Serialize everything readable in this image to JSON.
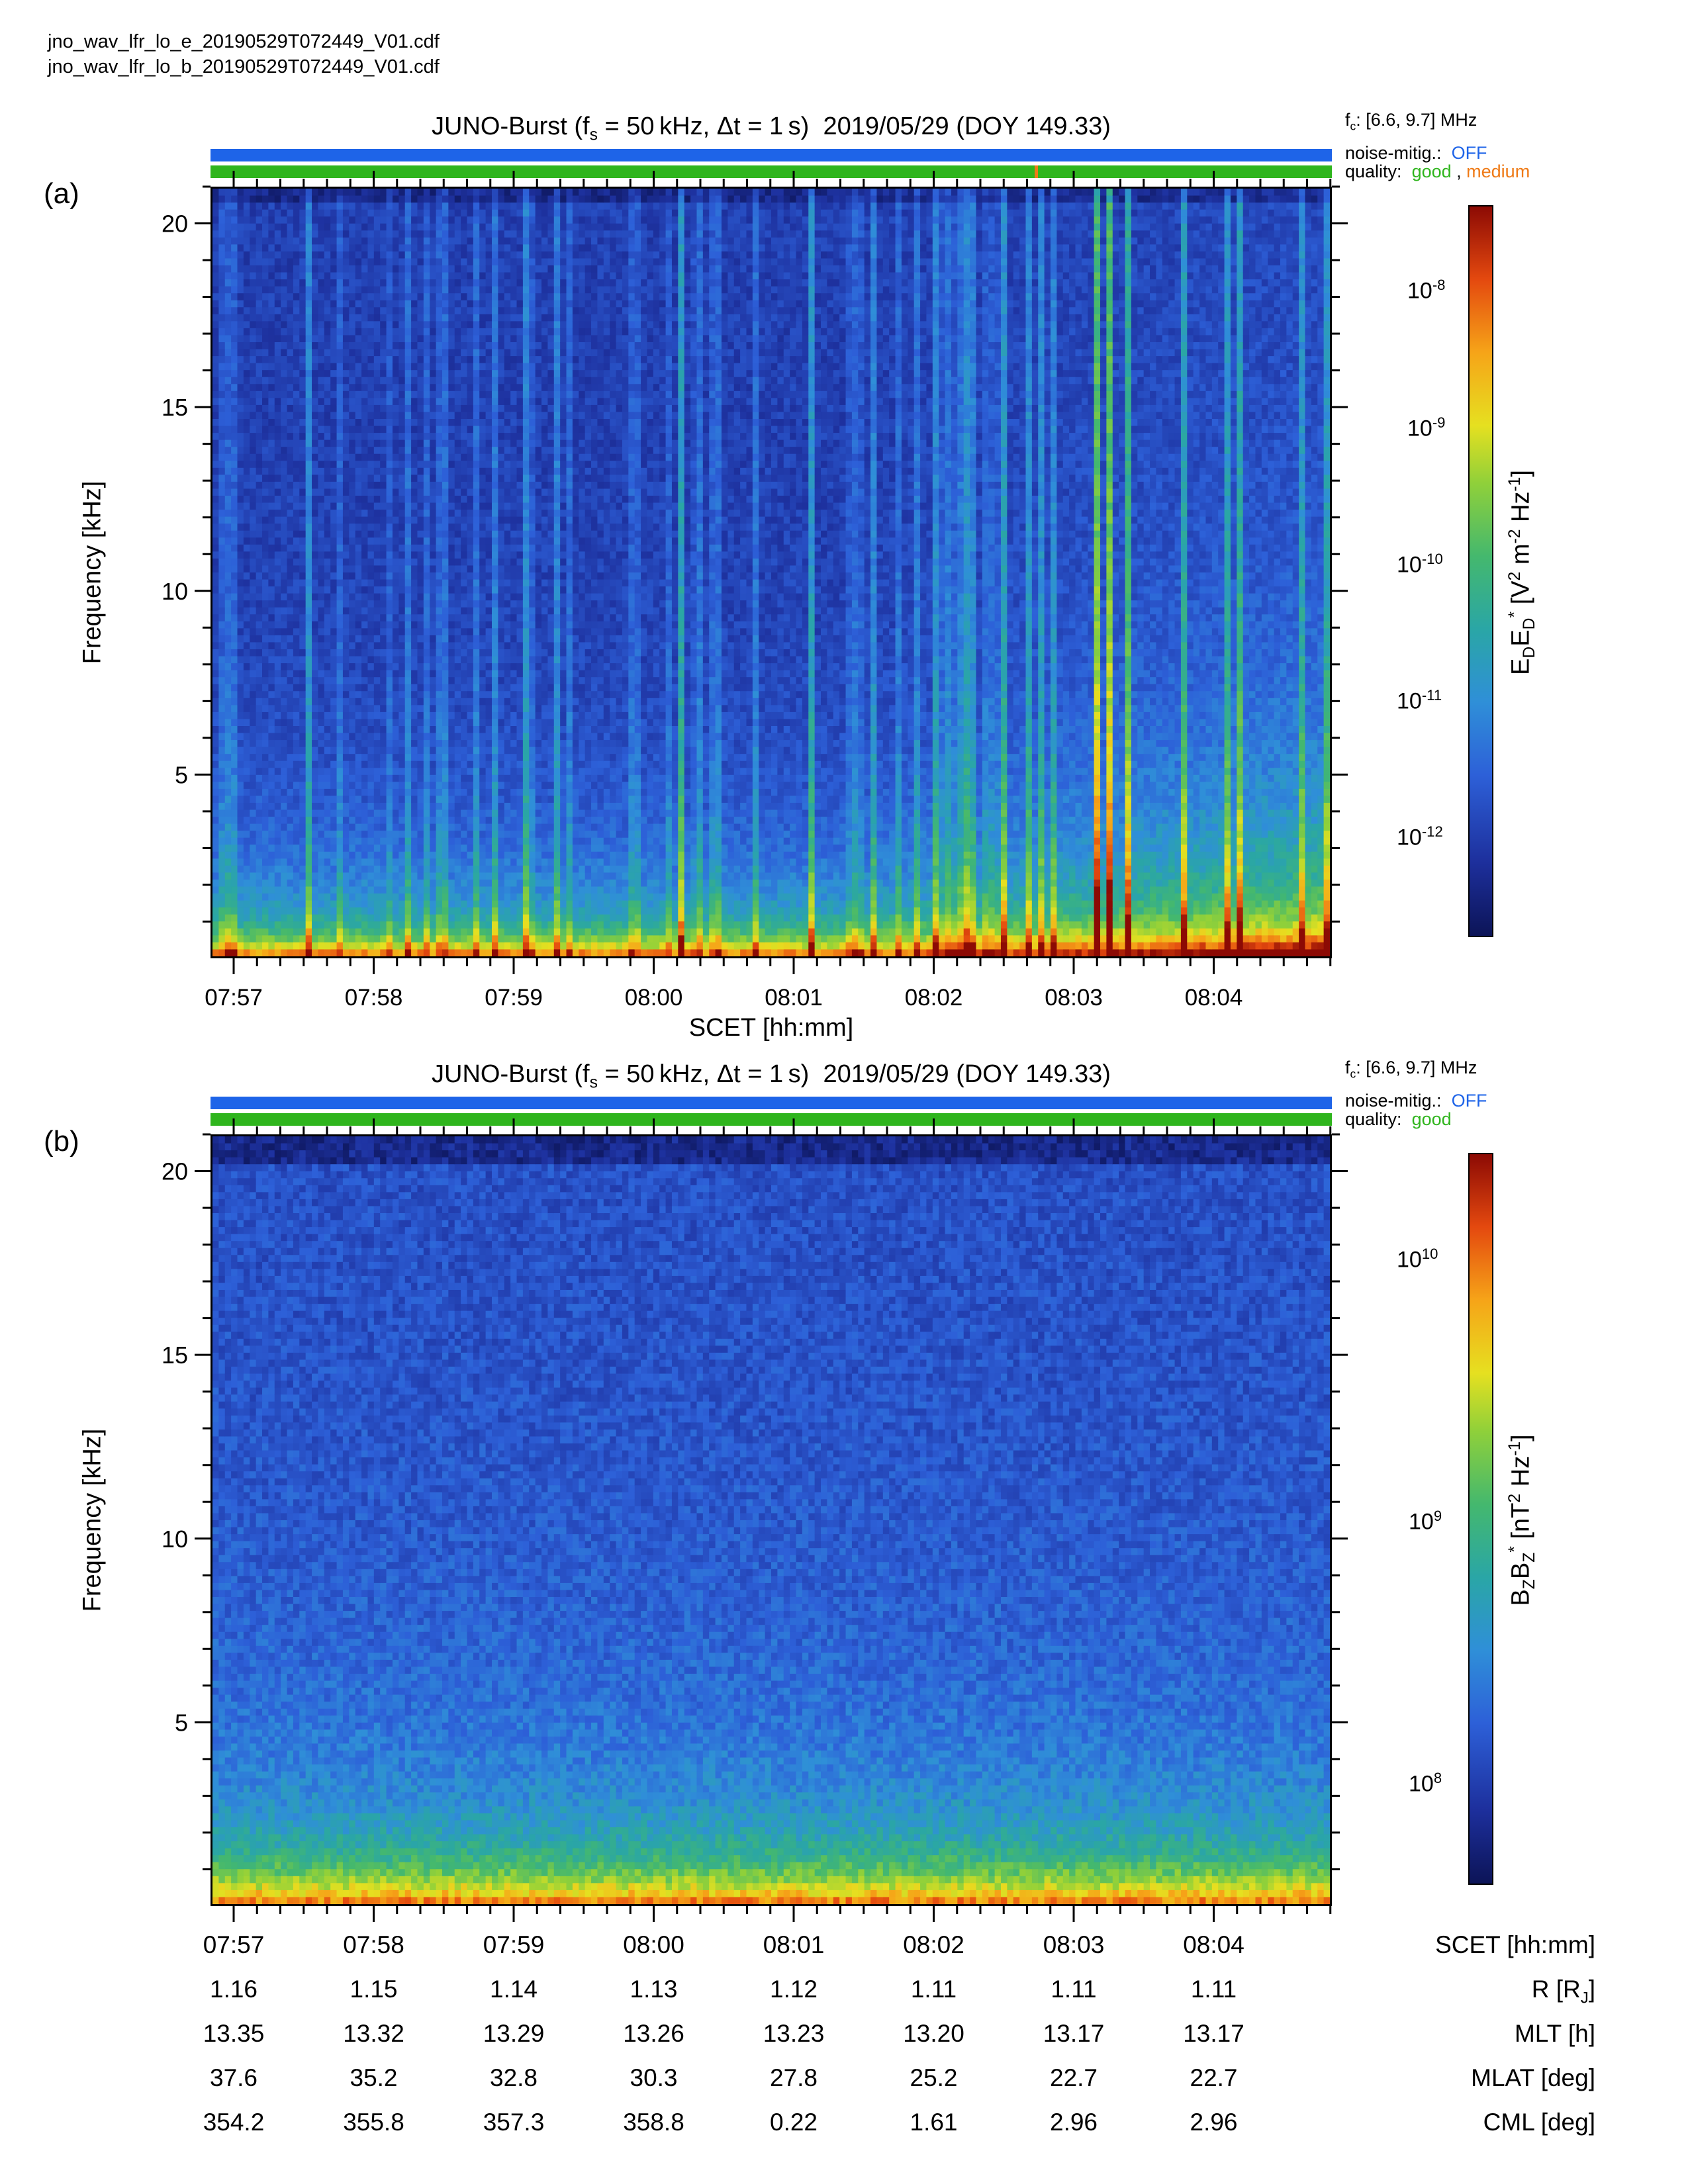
{
  "files": [
    "jno_wav_lfr_lo_e_20190529T072449_V01.cdf",
    "jno_wav_lfr_lo_b_20190529T072449_V01.cdf"
  ],
  "colors": {
    "noise_bar": "#1e64e8",
    "quality_good": "#2fb51d",
    "quality_medium": "#ef7a16",
    "noise_text": "#1e64e8"
  },
  "chart_data": [
    {
      "type": "heatmap",
      "panel_label": "(a)",
      "title": "JUNO-Burst (fs = 50 kHz, Δt = 1 s)  2019/05/29 (DOY 149.33)",
      "fc": "fc: [6.6, 9.7] MHz",
      "noise_mitig": "OFF",
      "quality": [
        "good",
        "medium"
      ],
      "xlabel": "SCET [hh:mm]",
      "ylabel": "Frequency [kHz]",
      "x_ticks": [
        "07:57",
        "07:58",
        "07:59",
        "08:00",
        "08:01",
        "08:02",
        "08:03",
        "08:04"
      ],
      "y_ticks": [
        5,
        10,
        15,
        20
      ],
      "ylim": [
        0,
        21
      ],
      "colorbar": {
        "label": "EDED* [V2 m-2 Hz-1]",
        "scale": "log",
        "ticks": [
          "10-12",
          "10-11",
          "10-10",
          "10-9",
          "10-8"
        ],
        "range": [
          1e-13,
          5e-08
        ]
      },
      "features": "intense emission below ~1 kHz, banded bursts up to ~6 kHz between 07:59 and 08:01, increasing broadband spiky emission after 08:02"
    },
    {
      "type": "heatmap",
      "panel_label": "(b)",
      "title": "JUNO-Burst (fs = 50 kHz, Δt = 1 s)  2019/05/29 (DOY 149.33)",
      "fc": "fc: [6.6, 9.7] MHz",
      "noise_mitig": "OFF",
      "quality": [
        "good"
      ],
      "xlabel": "SCET [hh:mm]",
      "ylabel": "Frequency [kHz]",
      "x_ticks": [
        "07:57",
        "07:58",
        "07:59",
        "08:00",
        "08:01",
        "08:02",
        "08:03",
        "08:04"
      ],
      "y_ticks": [
        5,
        10,
        15,
        20
      ],
      "ylim": [
        0,
        21
      ],
      "colorbar": {
        "label": "BZBZ* [nT2 Hz-1]",
        "scale": "log",
        "ticks": [
          "108",
          "109",
          "1010"
        ],
        "range": [
          60000000.0,
          40000000000.0
        ]
      },
      "features": "smooth broadband spectrum, intensity decreasing with frequency, strongest below ~1 kHz"
    }
  ],
  "ephemeris": {
    "SCET [hh:mm]": [
      "07:57",
      "07:58",
      "07:59",
      "08:00",
      "08:01",
      "08:02",
      "08:03",
      "08:04"
    ],
    "R [RJ]": [
      "1.16",
      "1.15",
      "1.14",
      "1.13",
      "1.12",
      "1.11",
      "1.11",
      "1.11"
    ],
    "MLT [h]": [
      "13.35",
      "13.32",
      "13.29",
      "13.26",
      "13.23",
      "13.20",
      "13.17",
      "13.17"
    ],
    "MLAT [deg]": [
      "37.6",
      "35.2",
      "32.8",
      "30.3",
      "27.8",
      "25.2",
      "22.7",
      "22.7"
    ],
    "CML [deg]": [
      "354.2",
      "355.8",
      "357.3",
      "358.8",
      "0.22",
      "1.61",
      "2.96",
      "2.96"
    ]
  },
  "text": {
    "title_a": "JUNO-Burst (",
    "noise_label": "noise-mitig.:",
    "quality_label": "quality:",
    "eph_scet": "SCET [hh:mm]",
    "eph_r": "R [R",
    "eph_mlt": "MLT [h]",
    "eph_mlat": "MLAT [deg]",
    "eph_cml": "CML [deg]"
  }
}
